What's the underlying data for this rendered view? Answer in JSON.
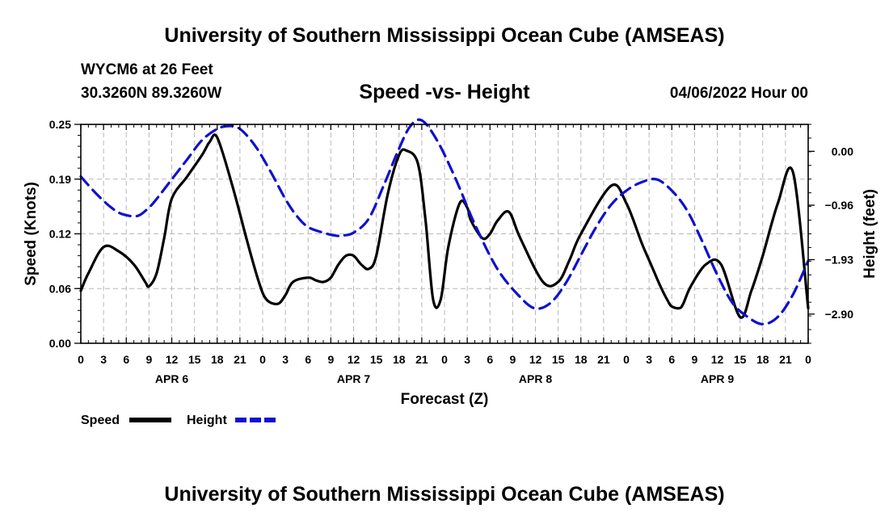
{
  "header": {
    "title": "University of Southern Mississippi Ocean Cube (AMSEAS)",
    "station": "WYCM6 at 26 Feet",
    "coordinates": "30.3260N  89.3260W",
    "subtitle": "Speed -vs- Height",
    "datetime": "04/06/2022 Hour 00"
  },
  "footer": {
    "title": "University of Southern Mississippi Ocean Cube (AMSEAS)"
  },
  "colors": {
    "speed": "#000000",
    "height": "#1010d0",
    "grid": "#b8b8b8"
  },
  "chart_data": {
    "type": "line",
    "title": "Speed -vs- Height",
    "xlabel": "Forecast (Z)",
    "ylabel": "Speed (Knots)",
    "y2label": "Height (feet)",
    "xlim": [
      0,
      96
    ],
    "ylim": [
      0,
      0.25
    ],
    "y2lim": [
      0.48,
      -3.42
    ],
    "x_tick_labels": [
      "0",
      "3",
      "6",
      "9",
      "12",
      "15",
      "18",
      "21",
      "0",
      "3",
      "6",
      "9",
      "12",
      "15",
      "18",
      "21",
      "0",
      "3",
      "6",
      "9",
      "12",
      "15",
      "18",
      "21",
      "0",
      "3",
      "6",
      "9",
      "12",
      "15",
      "18",
      "21",
      "0"
    ],
    "day_labels": [
      {
        "label": "APR 6",
        "x": 12
      },
      {
        "label": "APR 7",
        "x": 36
      },
      {
        "label": "APR 8",
        "x": 60
      },
      {
        "label": "APR 9",
        "x": 84
      }
    ],
    "y_ticks": [
      {
        "value": 0,
        "label": "0.00"
      },
      {
        "value": 0.0625,
        "label": "0.06"
      },
      {
        "value": 0.125,
        "label": "0.12"
      },
      {
        "value": 0.1875,
        "label": "0.19"
      },
      {
        "value": 0.25,
        "label": "0.25"
      }
    ],
    "y2_ticks": [
      {
        "value": 0.0,
        "label": "0.00"
      },
      {
        "value": -0.96,
        "label": "−0.96"
      },
      {
        "value": -1.93,
        "label": "−1.93"
      },
      {
        "value": -2.9,
        "label": "−2.90"
      }
    ],
    "legend": [
      {
        "name": "Speed",
        "style": "solid"
      },
      {
        "name": "Height",
        "style": "dashed"
      }
    ],
    "series": [
      {
        "name": "Speed",
        "axis": "left",
        "x": [
          0,
          1,
          3,
          5,
          7,
          8.5,
          9,
          10,
          11,
          12,
          14,
          16,
          17,
          18,
          20,
          22,
          23.5,
          24.5,
          26,
          27,
          28,
          30,
          31,
          32,
          33,
          34,
          35,
          36,
          37,
          38,
          39,
          40.5,
          42,
          43,
          44.5,
          45.5,
          46.5,
          47.5,
          48.5,
          50,
          51,
          51.5,
          53,
          54,
          55,
          56.5,
          58,
          61,
          63,
          64.5,
          66,
          70,
          72,
          74,
          75,
          75.5,
          76.5,
          77.5,
          78,
          79,
          79.5,
          80.5,
          82.5,
          84.5,
          87,
          88.5,
          90,
          92,
          94,
          96
        ],
        "values": [
          0.06,
          0.08,
          0.11,
          0.105,
          0.09,
          0.07,
          0.065,
          0.08,
          0.12,
          0.165,
          0.19,
          0.215,
          0.23,
          0.235,
          0.18,
          0.115,
          0.07,
          0.05,
          0.045,
          0.055,
          0.07,
          0.075,
          0.072,
          0.07,
          0.075,
          0.09,
          0.1,
          0.1,
          0.09,
          0.085,
          0.1,
          0.17,
          0.215,
          0.22,
          0.205,
          0.14,
          0.05,
          0.05,
          0.11,
          0.16,
          0.155,
          0.14,
          0.12,
          0.125,
          0.14,
          0.15,
          0.12,
          0.07,
          0.07,
          0.095,
          0.125,
          0.18,
          0.16,
          0.115,
          0.095,
          0.085,
          0.065,
          0.048,
          0.042,
          0.04,
          0.045,
          0.065,
          0.09,
          0.09,
          0.03,
          0.06,
          0.1,
          0.16,
          0.195,
          0.04
        ]
      },
      {
        "name": "Height",
        "axis": "right",
        "x": [
          0,
          2,
          4,
          5.5,
          7.5,
          9,
          10,
          12,
          14,
          16,
          18,
          19.5,
          21,
          23,
          25,
          27,
          28.5,
          30,
          32,
          33.5,
          34.5,
          36,
          38,
          40,
          42,
          43.5,
          45,
          47,
          49.5,
          52,
          55,
          58,
          60,
          62,
          64,
          66,
          68,
          70,
          72,
          74,
          76,
          78,
          80,
          82,
          84,
          86,
          88,
          90,
          92,
          94,
          96
        ],
        "values": [
          -0.45,
          -0.75,
          -1.0,
          -1.12,
          -1.15,
          -1.0,
          -0.85,
          -0.5,
          -0.15,
          0.2,
          0.4,
          0.45,
          0.4,
          0.1,
          -0.35,
          -0.85,
          -1.15,
          -1.35,
          -1.45,
          -1.5,
          -1.5,
          -1.45,
          -1.2,
          -0.6,
          0.05,
          0.45,
          0.55,
          0.2,
          -0.5,
          -1.3,
          -2.1,
          -2.6,
          -2.8,
          -2.7,
          -2.35,
          -1.85,
          -1.35,
          -0.95,
          -0.7,
          -0.55,
          -0.5,
          -0.7,
          -1.05,
          -1.6,
          -2.2,
          -2.7,
          -2.95,
          -3.08,
          -2.95,
          -2.55,
          -1.95
        ]
      }
    ]
  }
}
